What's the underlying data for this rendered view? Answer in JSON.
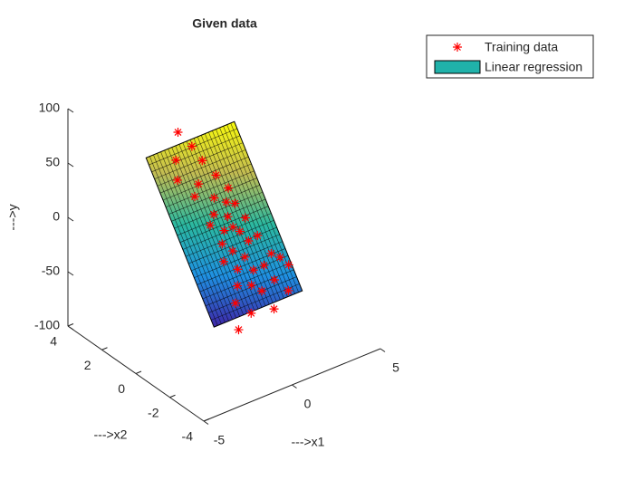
{
  "chart_data": {
    "type": "scatter3",
    "title": "Given data",
    "xlabel": "--->x1",
    "ylabel": "--->x2",
    "zlabel": "--->y",
    "xlim": [
      -5,
      5
    ],
    "xticks": [
      -5,
      0,
      5
    ],
    "ylim": [
      -4,
      4
    ],
    "yticks": [
      -4,
      -2,
      0,
      2,
      4
    ],
    "zlim": [
      -100,
      100
    ],
    "zticks": [
      -100,
      -50,
      0,
      50,
      100
    ],
    "legend": "northeast",
    "series": [
      {
        "name": "Training data",
        "color": "#ff0000",
        "x": [
          -0.5,
          -1,
          0.2,
          -0.3,
          0.5,
          -0.8,
          0.1,
          0.6,
          -0.2,
          0.9,
          -0.6,
          0.3,
          1.2,
          -0.1,
          0.7,
          -0.4,
          1.5,
          0,
          0.8,
          -0.7,
          0.4,
          1.8,
          -0.2,
          0.6,
          1.1,
          -0.5,
          0.2,
          2.2,
          1.4,
          -0.9,
          0.5,
          1.9,
          -0.3,
          0.9,
          -1.2,
          2.4,
          1,
          -1.3,
          0,
          0.4
        ],
        "y": [
          2.2,
          1.8,
          1.5,
          1.2,
          1,
          0.9,
          0.7,
          0.5,
          0.4,
          0.3,
          0.2,
          0.1,
          0,
          -0.1,
          -0.2,
          -0.3,
          -0.4,
          -0.5,
          -0.6,
          -0.7,
          -0.8,
          -0.9,
          -1,
          -1.1,
          -1.2,
          -1.3,
          -1.4,
          -1,
          -1.5,
          -1.6,
          -1.7,
          -1.8,
          -1.9,
          -2,
          -2.1,
          -1.3,
          0.8,
          1.4,
          1.9,
          -0.1
        ],
        "z": [
          68,
          50,
          45,
          30,
          35,
          25,
          20,
          15,
          10,
          14,
          5,
          8,
          2,
          0,
          -5,
          -8,
          -12,
          -15,
          -10,
          -18,
          -20,
          -25,
          -25,
          -30,
          -28,
          -35,
          -38,
          -30,
          -40,
          -45,
          -42,
          -50,
          -55,
          -58,
          -62,
          -35,
          22,
          38,
          55,
          0
        ]
      },
      {
        "name": "Linear regression",
        "color": "#20b2aa",
        "x": [
          -2.5,
          2.5
        ],
        "y": [
          -2,
          2
        ],
        "z": [
          [
            -52,
            -52
          ],
          [
            60,
            60
          ]
        ]
      }
    ]
  }
}
